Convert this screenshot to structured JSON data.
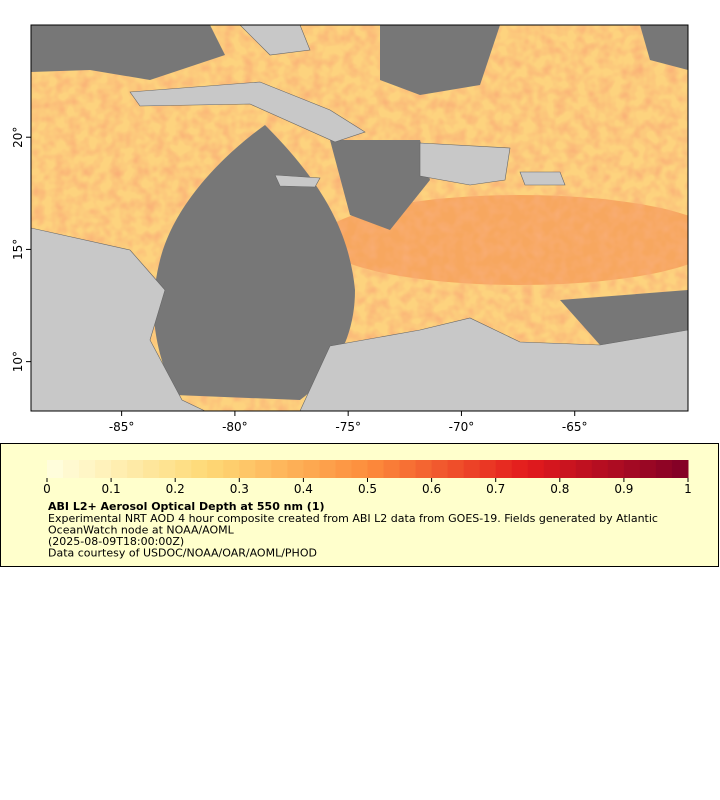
{
  "map": {
    "xlim": [
      -89,
      -60
    ],
    "ylim": [
      7.8,
      25
    ],
    "xticks": [
      {
        "value": -85,
        "label": "-85°"
      },
      {
        "value": -80,
        "label": "-80°"
      },
      {
        "value": -75,
        "label": "-75°"
      },
      {
        "value": -70,
        "label": "-70°"
      },
      {
        "value": -65,
        "label": "-65°"
      }
    ],
    "yticks": [
      {
        "value": 10,
        "label": "10°"
      },
      {
        "value": 15,
        "label": "15°"
      },
      {
        "value": 20,
        "label": "20°"
      }
    ]
  },
  "colorbar": {
    "lim": [
      0,
      1
    ],
    "ticks": [
      0,
      0.1,
      0.2,
      0.3,
      0.4,
      0.5,
      0.6,
      0.7,
      0.8,
      0.9,
      1
    ],
    "title": "ABI L2+ Aerosol Optical Depth at 550 nm (1)",
    "lines": [
      "Experimental NRT AOD 4 hour composite created from ABI L2 data from GOES-19. Fields generated by Atlantic",
      "OceanWatch node at NOAA/AOML",
      "(2025-08-09T18:00:00Z)",
      "Data courtesy of USDOC/NOAA/OAR/AOML/PHOD"
    ]
  }
}
